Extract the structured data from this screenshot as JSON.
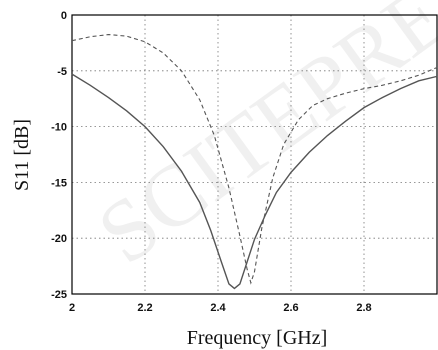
{
  "watermark": {
    "text": "SCITEPRESS Science and Technology Publications"
  },
  "chart_data": {
    "type": "line",
    "title": "",
    "xlabel": "Frequency [GHz]",
    "ylabel": "S11 [dB]",
    "xlim": [
      2.0,
      3.0
    ],
    "ylim": [
      -25,
      0
    ],
    "xticks": [
      2.0,
      2.2,
      2.4,
      2.6,
      2.8
    ],
    "xtick_labels": [
      "2",
      "2.2",
      "2.4",
      "2.6",
      "2.8"
    ],
    "yticks": [
      0,
      -5,
      -10,
      -15,
      -20,
      -25
    ],
    "ytick_labels": [
      "0",
      "-5",
      "-10",
      "-15",
      "-20",
      "-25"
    ],
    "grid": true,
    "series": [
      {
        "style": "solid",
        "points": [
          [
            2.0,
            -5.3
          ],
          [
            2.05,
            -6.3
          ],
          [
            2.1,
            -7.4
          ],
          [
            2.15,
            -8.6
          ],
          [
            2.2,
            -10.0
          ],
          [
            2.25,
            -11.8
          ],
          [
            2.3,
            -14.0
          ],
          [
            2.35,
            -16.8
          ],
          [
            2.38,
            -19.3
          ],
          [
            2.41,
            -22.2
          ],
          [
            2.43,
            -24.1
          ],
          [
            2.445,
            -24.5
          ],
          [
            2.46,
            -24.1
          ],
          [
            2.48,
            -22.1
          ],
          [
            2.5,
            -20.1
          ],
          [
            2.53,
            -17.9
          ],
          [
            2.56,
            -15.9
          ],
          [
            2.6,
            -14.1
          ],
          [
            2.65,
            -12.3
          ],
          [
            2.7,
            -10.8
          ],
          [
            2.75,
            -9.5
          ],
          [
            2.8,
            -8.3
          ],
          [
            2.85,
            -7.4
          ],
          [
            2.9,
            -6.6
          ],
          [
            2.95,
            -5.9
          ],
          [
            3.0,
            -5.5
          ]
        ]
      },
      {
        "style": "dashed",
        "points": [
          [
            2.0,
            -2.3
          ],
          [
            2.05,
            -1.95
          ],
          [
            2.1,
            -1.75
          ],
          [
            2.15,
            -1.9
          ],
          [
            2.2,
            -2.4
          ],
          [
            2.25,
            -3.4
          ],
          [
            2.3,
            -5.0
          ],
          [
            2.35,
            -7.6
          ],
          [
            2.39,
            -10.8
          ],
          [
            2.43,
            -15.5
          ],
          [
            2.46,
            -19.8
          ],
          [
            2.48,
            -22.8
          ],
          [
            2.49,
            -24.0
          ],
          [
            2.5,
            -23.0
          ],
          [
            2.52,
            -19.1
          ],
          [
            2.55,
            -14.6
          ],
          [
            2.58,
            -11.6
          ],
          [
            2.62,
            -9.4
          ],
          [
            2.66,
            -8.1
          ],
          [
            2.7,
            -7.5
          ],
          [
            2.75,
            -7.0
          ],
          [
            2.8,
            -6.6
          ],
          [
            2.85,
            -6.3
          ],
          [
            2.9,
            -5.9
          ],
          [
            2.95,
            -5.4
          ],
          [
            3.0,
            -4.7
          ]
        ]
      }
    ]
  }
}
